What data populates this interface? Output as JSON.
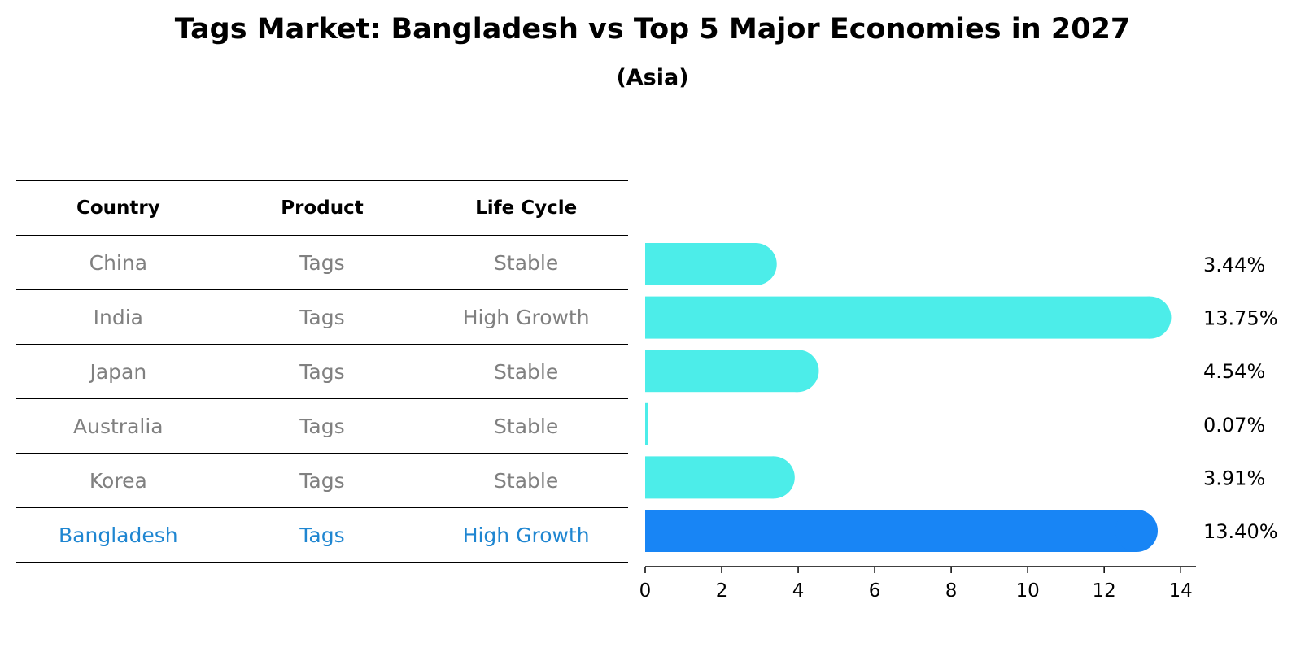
{
  "title": "Tags Market: Bangladesh vs Top 5 Major Economies in 2027",
  "subtitle": "(Asia)",
  "colors": {
    "bar": "#4CEDE9",
    "highlight": "#1885F5",
    "table_text": "#808080",
    "highlight_text": "#1F86D1"
  },
  "table": {
    "headers": [
      "Country",
      "Product",
      "Life Cycle"
    ],
    "rows": [
      {
        "country": "China",
        "product": "Tags",
        "life_cycle": "Stable",
        "highlight": false
      },
      {
        "country": "India",
        "product": "Tags",
        "life_cycle": "High Growth",
        "highlight": false
      },
      {
        "country": "Japan",
        "product": "Tags",
        "life_cycle": "Stable",
        "highlight": false
      },
      {
        "country": "Australia",
        "product": "Tags",
        "life_cycle": "Stable",
        "highlight": false
      },
      {
        "country": "Korea",
        "product": "Tags",
        "life_cycle": "Stable",
        "highlight": false
      },
      {
        "country": "Bangladesh",
        "product": "Tags",
        "life_cycle": "High Growth",
        "highlight": true
      }
    ]
  },
  "chart_data": {
    "type": "bar",
    "orientation": "horizontal",
    "categories": [
      "China",
      "India",
      "Japan",
      "Australia",
      "Korea",
      "Bangladesh"
    ],
    "values": [
      3.44,
      13.75,
      4.54,
      0.07,
      3.91,
      13.4
    ],
    "value_labels": [
      "3.44%",
      "13.75%",
      "4.54%",
      "0.07%",
      "3.91%",
      "13.40%"
    ],
    "highlight_index": 5,
    "xlim": [
      0,
      14.4
    ],
    "xticks": [
      0,
      2,
      4,
      6,
      8,
      10,
      12,
      14
    ],
    "xtick_labels": [
      "0",
      "2",
      "4",
      "6",
      "8",
      "10",
      "12",
      "14"
    ],
    "grid": false
  }
}
